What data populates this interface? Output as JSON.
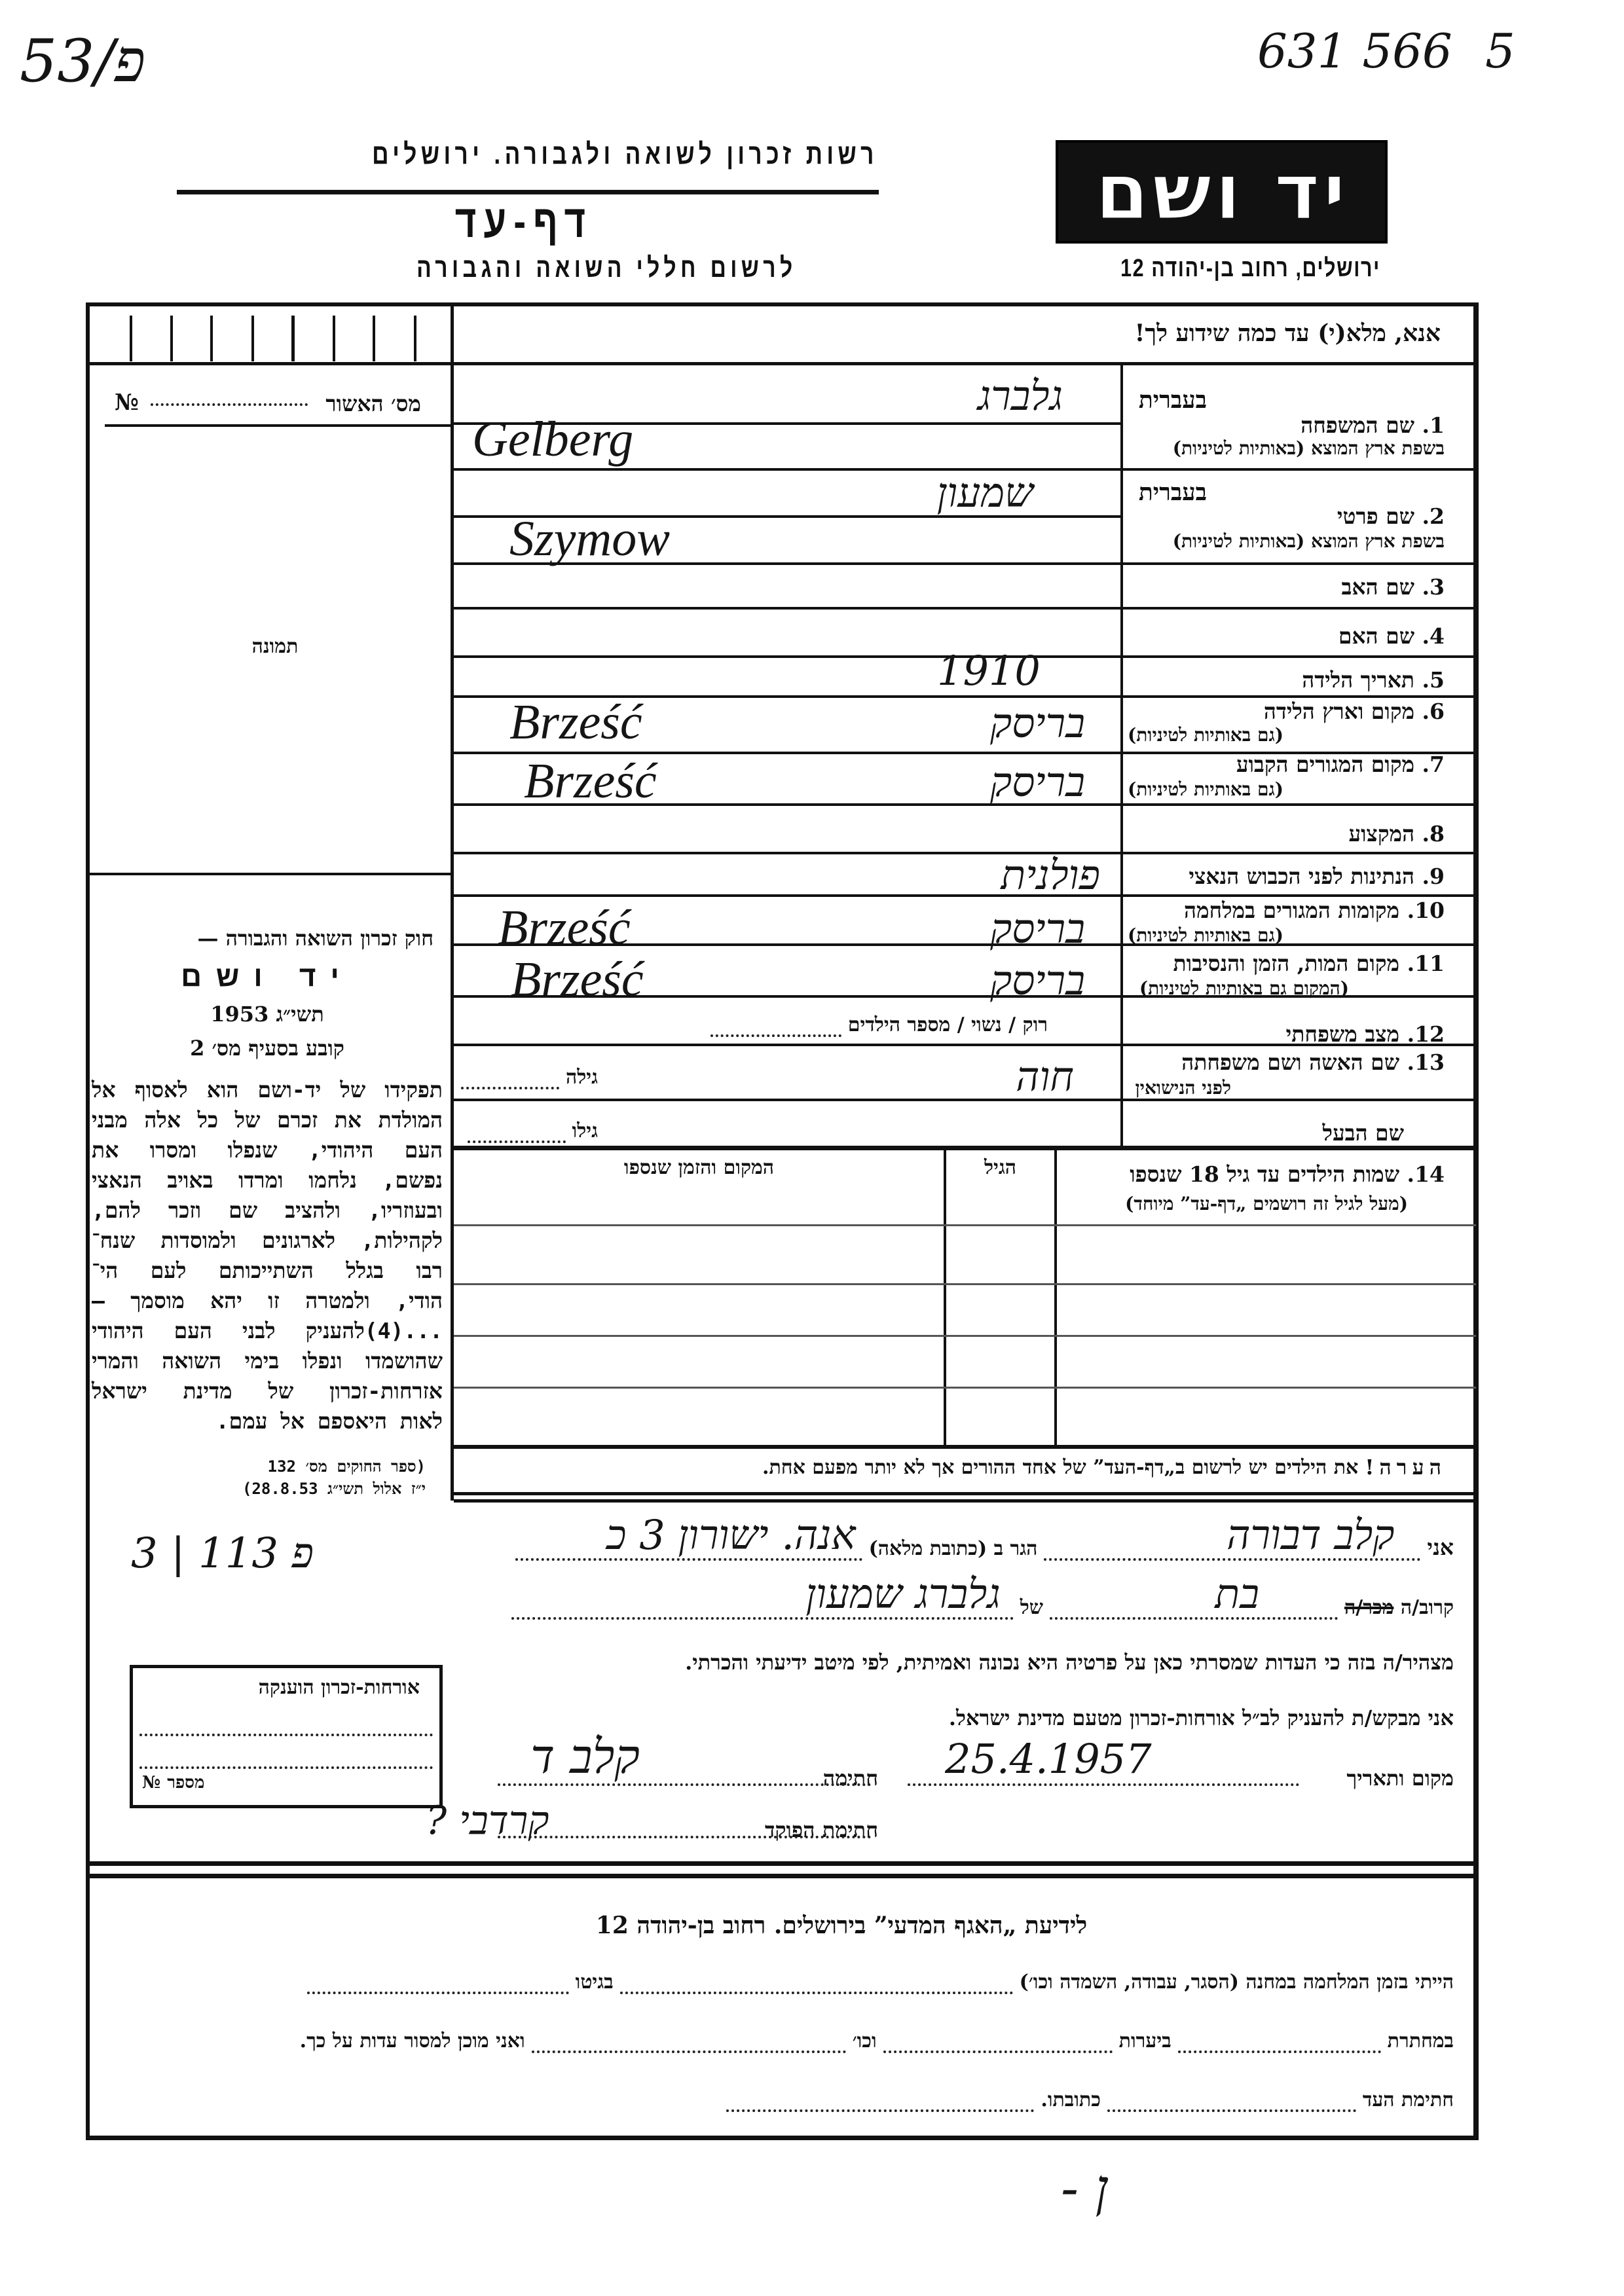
{
  "annotations": {
    "file_code": "53/פ",
    "record_number": "631 566",
    "page_mark": "5",
    "archive_ref": "3 | 113 פ",
    "bottom_mark": "- ן"
  },
  "header": {
    "logo_text": "יד ושם",
    "authority": "רשות זכרון לשואה ולגבורה. ירושלים",
    "title": "דף-עד",
    "subtitle": "לרשום חללי השואה והגבורה",
    "address": "ירושלים, רחוב בן-יהודה 12"
  },
  "form": {
    "instruction": "אנא, מלא(י) עד כמה שידוע לך!",
    "approval_label": "מס׳ האשור",
    "approval_no_sign": "№",
    "photo_label": "תמונה",
    "hebrew_label": "בעברית",
    "fields": {
      "f1": "1. שם המשפחה",
      "f1_sub": "בשפת ארץ המוצא (באותיות לטיניות)",
      "f2": "2. שם פרטי",
      "f2_sub": "בשפת ארץ המוצא (באותיות לטיניות)",
      "f3": "3. שם האב",
      "f4": "4. שם האם",
      "f5": "5. תאריך הלידה",
      "f6": "6. מקום וארץ הלידה",
      "f6_sub": "(גם באותיות לטיניות)",
      "f7": "7. מקום המגורים הקבוע",
      "f7_sub": "(גם באותיות לטיניות)",
      "f8": "8. המקצוע",
      "f9": "9. הנתינות לפני הכבוש הנאצי",
      "f10": "10. מקומות המגורים במלחמה",
      "f10_sub": "(גם באותיות לטיניות)",
      "f11": "11. מקום המות, הזמן והנסיבות",
      "f11_sub": "(המקום גם באותיות לטיניות)",
      "f12": "12. מצב משפחתי",
      "f13": "13. שם האשה ושם משפחתה",
      "f13_sub": "לפני הנישואין",
      "husband": "שם הבעל",
      "f14": "14. שמות הילדים עד גיל 18 שנספו",
      "f14_sub": "(מעל לגיל זה רושמים „דף-עד” מיוחד)"
    },
    "inline": {
      "marital_status_options": "רוק / נשוי / מספר הילדים",
      "wife_age_label": "גילה",
      "husband_age_label": "גילו"
    },
    "values": {
      "family_name_hebrew": "גלברג",
      "family_name_latin": "Gelberg",
      "first_name_hebrew": "שמעון",
      "first_name_latin": "Szymow",
      "birth_date": "1910",
      "birth_place_hebrew": "בריסק",
      "birth_place_latin": "Brześć",
      "residence_hebrew": "בריסק",
      "residence_latin": "Brześć",
      "nationality": "פולנית",
      "wartime_places_hebrew": "בריסק",
      "wartime_places_latin": "Brześć",
      "death_place_hebrew": "בריסק",
      "death_place_latin": "Brześć",
      "wife_name": "חוה"
    },
    "children_table": {
      "col_age": "הגיל",
      "col_place_time": "המקום והזמן שנספו"
    },
    "note": {
      "label": "הערה!",
      "text": "את הילדים יש לרשום ב„דף-העד” של אחד ההורים אך לא יותר מפעם אחת."
    }
  },
  "law": {
    "title": "חוק זכרון השואה והגבורה —",
    "logo": "יד ושם",
    "year": "תשי״ג 1953",
    "clause": "קובע בסעיף מס׳ 2",
    "body": [
      "תפקידו של יד-ושם הוא לאסוף אל",
      "המולדת את זכרם של כל אלה מבני",
      "העם היהודי, שנפלו ומסרו את",
      "נפשם, נלחמו ומרדו באויב הנאצי",
      "ובעוזריו, ולהציב שם וזכר להם,",
      "לקהילות, לארגונים ולמוסדות שנח־",
      "רבו בגלל השתייכותם לעם הי־",
      "הודי, ולמטרה זו יהא מוסמך —",
      "...(4)להעניק לבני העם היהודי",
      "שהושמדו ונפלו בימי השואה והמרי",
      "אזרחות-זכרון של מדינת ישראל",
      "לאות היאספם אל עמם."
    ],
    "footnote": [
      "(ספר החוקים מס׳ 132",
      "י״ז אלול תשי״ג 28.8.53)"
    ]
  },
  "testimony": {
    "i_label": "אני",
    "witness_name": "קלב דבורה",
    "resides_label": "הגר ב (כתובת מלאה)",
    "address": "אנה. ישורון 3 כ",
    "relation_label_kept": "קרוב/ה",
    "relation_label_struck": "מכר/ה",
    "relation": "בת",
    "of_label": "של",
    "relative_of": "גלברג שמעון",
    "declaration": "מצהיר/ה בזה כי העדות שמסרתי כאן על פרטיה היא נכונה ואמיתית, לפי מיטב ידיעתי והכרתי.",
    "request": "אני מבקש/ת להעניק לב״ל אורחות-זכרון מטעם מדינת ישראל.",
    "place_date_label": "מקום ותאריך",
    "date": "25.4.1957",
    "signature_label": "חתימה",
    "signature": "קלב ד",
    "registrar_label": "חתימת הפוקד",
    "registrar_signature": "קרדבי ?"
  },
  "citizenship_box": {
    "title": "אורחות-זכרון הוענקה",
    "number_label": "מספר",
    "number_sign": "№"
  },
  "bottom": {
    "heading": "לידיעת „האגף המדעי” בירושלים. רחוב בן-יהודה 12",
    "line1_a": "הייתי בזמן המלחמה במחנה (הסגר, עבודה, השמדה וכו׳)",
    "line1_b": "בגיטו",
    "line2_a": "במחתרת",
    "line2_b": "ביערות",
    "line2_c": "וכו׳",
    "line2_d": "ואני מוכן למסור עדות על כך.",
    "line3_a": "חתימת העד",
    "line3_b": "כתובתו."
  }
}
